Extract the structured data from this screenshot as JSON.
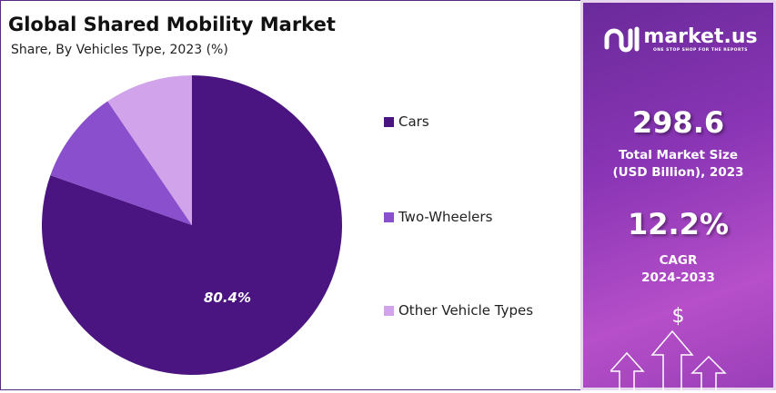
{
  "chart_data": {
    "type": "pie",
    "title": "Global Shared Mobility Market",
    "subtitle": "Share, By Vehicles Type, 2023 (%)",
    "categories": [
      "Cars",
      "Two-Wheelers",
      "Other Vehicle Types"
    ],
    "values": [
      80.4,
      10.1,
      9.5
    ],
    "data_labels": [
      "80.4%",
      "",
      ""
    ],
    "colors": [
      "#4a1580",
      "#8a4fcc",
      "#d0a3ea"
    ],
    "legend_position": "right"
  },
  "panel": {
    "logo_name": "market.us",
    "logo_tagline": "ONE STOP SHOP FOR THE REPORTS",
    "market_size": "298.6",
    "market_size_label_1": "Total Market Size",
    "market_size_label_2": "(USD Billion), 2023",
    "cagr": "12.2%",
    "cagr_label_1": "CAGR",
    "cagr_label_2": "2024-2033",
    "icon": "dollar-arrows-up-icon",
    "dollar": "$"
  }
}
